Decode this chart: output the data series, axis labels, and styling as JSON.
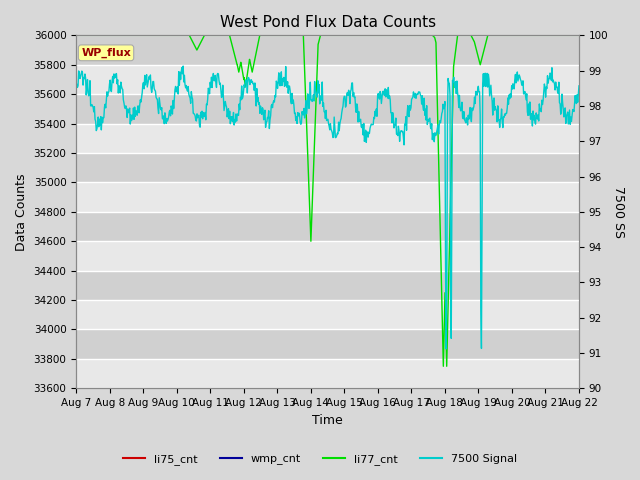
{
  "title": "West Pond Flux Data Counts",
  "ylabel_left": "Data Counts",
  "ylabel_right": "7500 SS",
  "xlabel": "Time",
  "ylim_left": [
    33600,
    36000
  ],
  "ylim_right": [
    90.0,
    100.0
  ],
  "yticks_left": [
    33600,
    33800,
    34000,
    34200,
    34400,
    34600,
    34800,
    35000,
    35200,
    35400,
    35600,
    35800,
    36000
  ],
  "yticks_right": [
    90.0,
    91.0,
    92.0,
    93.0,
    94.0,
    95.0,
    96.0,
    97.0,
    98.0,
    99.0,
    100.0
  ],
  "xtick_labels": [
    "Aug 7",
    "Aug 8",
    "Aug 9",
    "Aug 10",
    "Aug 11",
    "Aug 12",
    "Aug 13",
    "Aug 14",
    "Aug 15",
    "Aug 16",
    "Aug 17",
    "Aug 18",
    "Aug 19",
    "Aug 20",
    "Aug 21",
    "Aug 22"
  ],
  "bg_color": "#d8d8d8",
  "plot_bg_color_light": "#e8e8e8",
  "plot_bg_color_dark": "#d0d0d0",
  "grid_color": "#ffffff",
  "wp_flux_label": "WP_flux",
  "wp_flux_box_color": "#ffff99",
  "wp_flux_text_color": "#990000",
  "li77_color": "#00dd00",
  "li75_color": "#cc0000",
  "wmp_color": "#000099",
  "signal7500_color": "#00cccc",
  "legend_labels": [
    "li75_cnt",
    "wmp_cnt",
    "li77_cnt",
    "7500 Signal"
  ],
  "legend_colors": [
    "#cc0000",
    "#000099",
    "#00dd00",
    "#00cccc"
  ]
}
